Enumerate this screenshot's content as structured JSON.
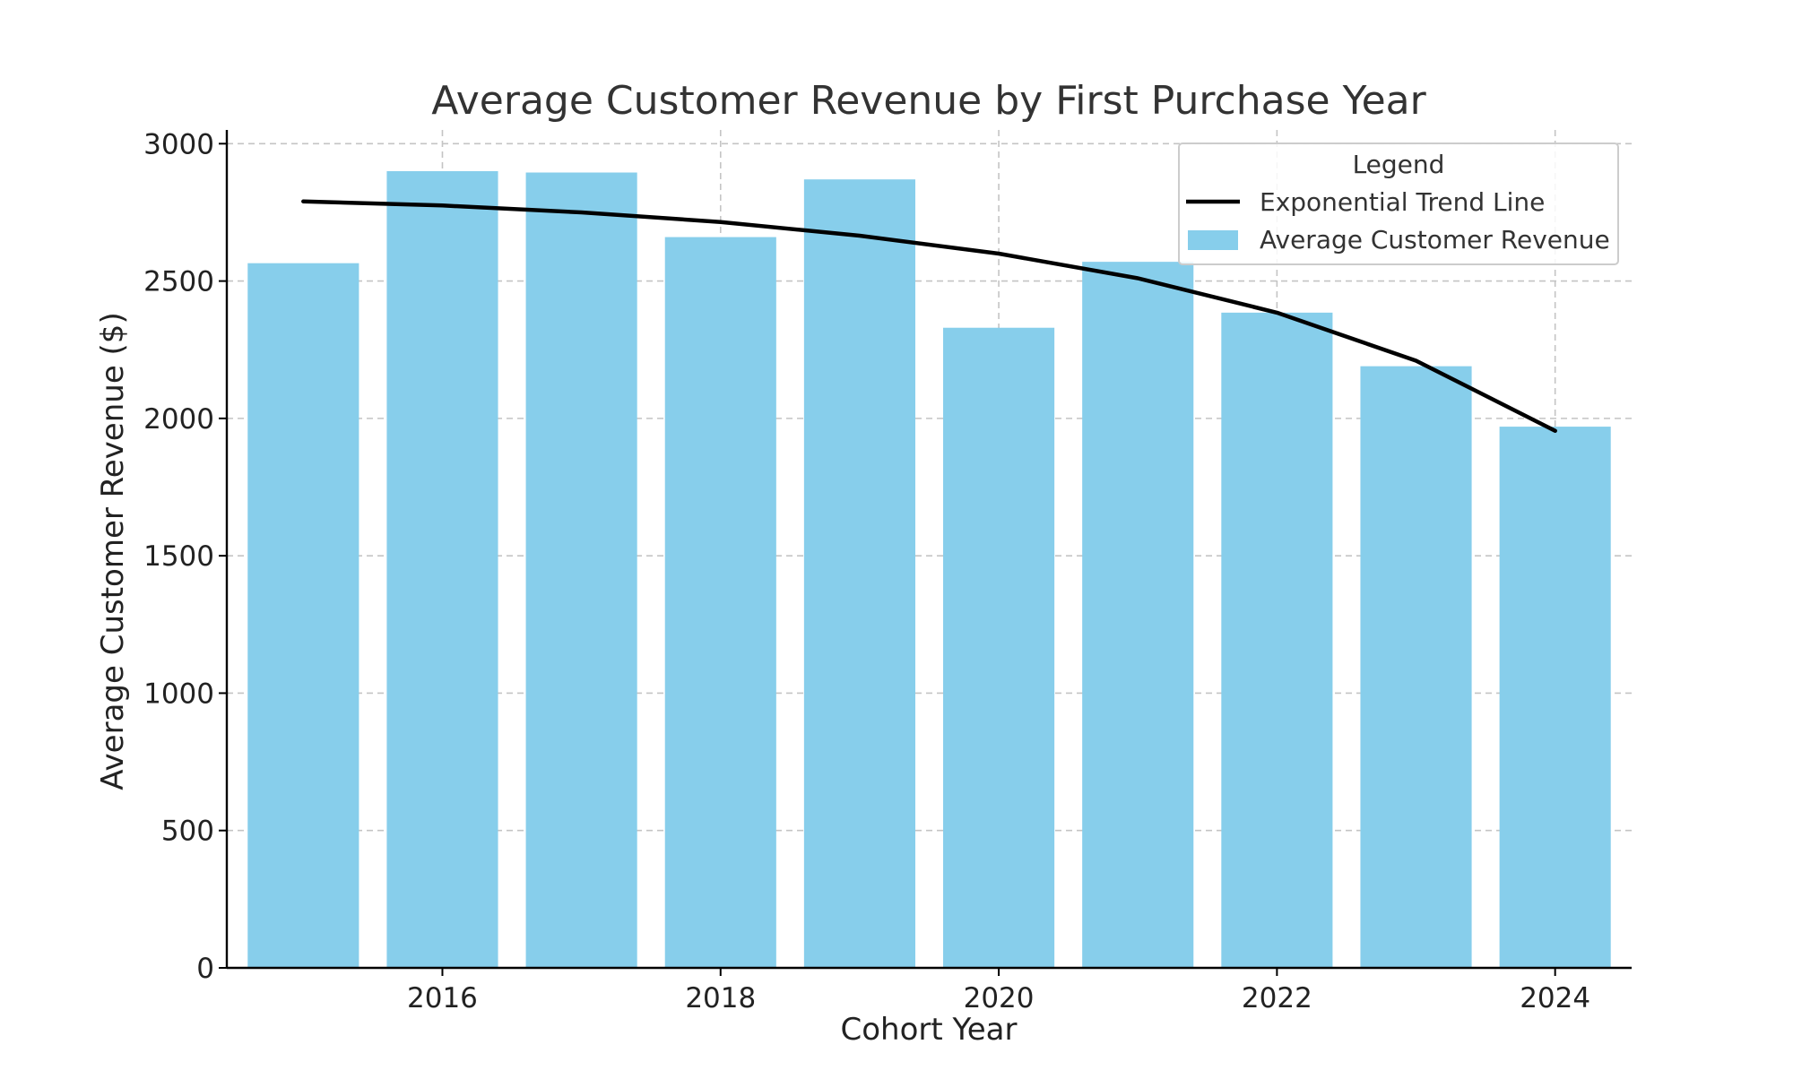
{
  "chart_data": {
    "type": "bar",
    "title": "Average Customer Revenue by First Purchase Year",
    "xlabel": "Cohort Year",
    "ylabel": "Average Customer Revenue ($)",
    "categories": [
      2015,
      2016,
      2017,
      2018,
      2019,
      2020,
      2021,
      2022,
      2023,
      2024
    ],
    "xticks": [
      2016,
      2018,
      2020,
      2022,
      2024
    ],
    "xlim": [
      2014.45,
      2024.55
    ],
    "ylim": [
      0,
      3050
    ],
    "yticks": [
      0,
      500,
      1000,
      1500,
      2000,
      2500,
      3000
    ],
    "grid": true,
    "series": [
      {
        "name": "Average Customer Revenue",
        "kind": "bar",
        "color": "#87CEEB",
        "values": [
          2565,
          2900,
          2895,
          2660,
          2870,
          2330,
          2570,
          2385,
          2190,
          1970
        ]
      },
      {
        "name": "Exponential Trend Line",
        "kind": "line",
        "color": "#000000",
        "x": [
          2015,
          2016,
          2017,
          2018,
          2019,
          2020,
          2021,
          2022,
          2023,
          2024
        ],
        "values": [
          2790,
          2775,
          2750,
          2715,
          2665,
          2600,
          2510,
          2385,
          2210,
          1955
        ]
      }
    ],
    "legend": {
      "title": "Legend",
      "placement": "top-right",
      "entries": [
        "Exponential Trend Line",
        "Average Customer Revenue"
      ]
    }
  }
}
